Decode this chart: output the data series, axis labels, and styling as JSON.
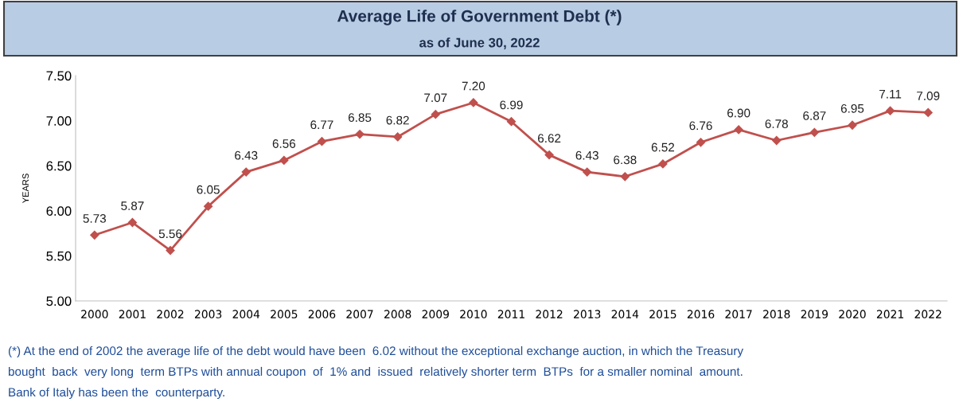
{
  "chart_data": {
    "type": "line",
    "title": "Average Life of Government Debt (*)",
    "subtitle": "as of June 30, 2022",
    "ylabel": "YEARS",
    "categories": [
      "2000",
      "2001",
      "2002",
      "2003",
      "2004",
      "2005",
      "2006",
      "2007",
      "2008",
      "2009",
      "2010",
      "2011",
      "2012",
      "2013",
      "2014",
      "2015",
      "2016",
      "2017",
      "2018",
      "2019",
      "2020",
      "2021",
      "2022"
    ],
    "series": [
      {
        "color": "#c0504d",
        "values": [
          5.73,
          5.87,
          5.56,
          6.05,
          6.43,
          6.56,
          6.77,
          6.85,
          6.82,
          7.07,
          7.2,
          6.99,
          6.62,
          6.43,
          6.38,
          6.52,
          6.76,
          6.9,
          6.78,
          6.87,
          6.95,
          7.11,
          7.09
        ],
        "value_labels": [
          "5.73",
          "5.87",
          "5.56",
          "6.05",
          "6.43",
          "6.56",
          "6.77",
          "6.85",
          "6.82",
          "7.07",
          "7.20",
          "6.99",
          "6.62",
          "6.43",
          "6.38",
          "6.52",
          "6.76",
          "6.90",
          "6.78",
          "6.87",
          "6.95",
          "7.11",
          "7.09"
        ]
      }
    ],
    "ylim": [
      5.0,
      7.5
    ],
    "yticks": [
      {
        "value": 5.0,
        "label": "5.00"
      },
      {
        "value": 5.5,
        "label": "5.50"
      },
      {
        "value": 6.0,
        "label": "6.00"
      },
      {
        "value": 6.5,
        "label": "6.50"
      },
      {
        "value": 7.0,
        "label": "7.00"
      },
      {
        "value": 7.5,
        "label": "7.50"
      }
    ],
    "grid": false,
    "legend": false,
    "marker": "diamond",
    "line_style": "solid",
    "annotations": [
      "(*) At the end of 2002 the average life of the debt would have been  6.02 without the exceptional exchange auction, in which the Treasury",
      "bought  back  very long  term BTPs with annual coupon  of  1% and  issued  relatively shorter term  BTPs  for a smaller nominal  amount.",
      "Bank of Italy has been the  counterparty."
    ]
  }
}
